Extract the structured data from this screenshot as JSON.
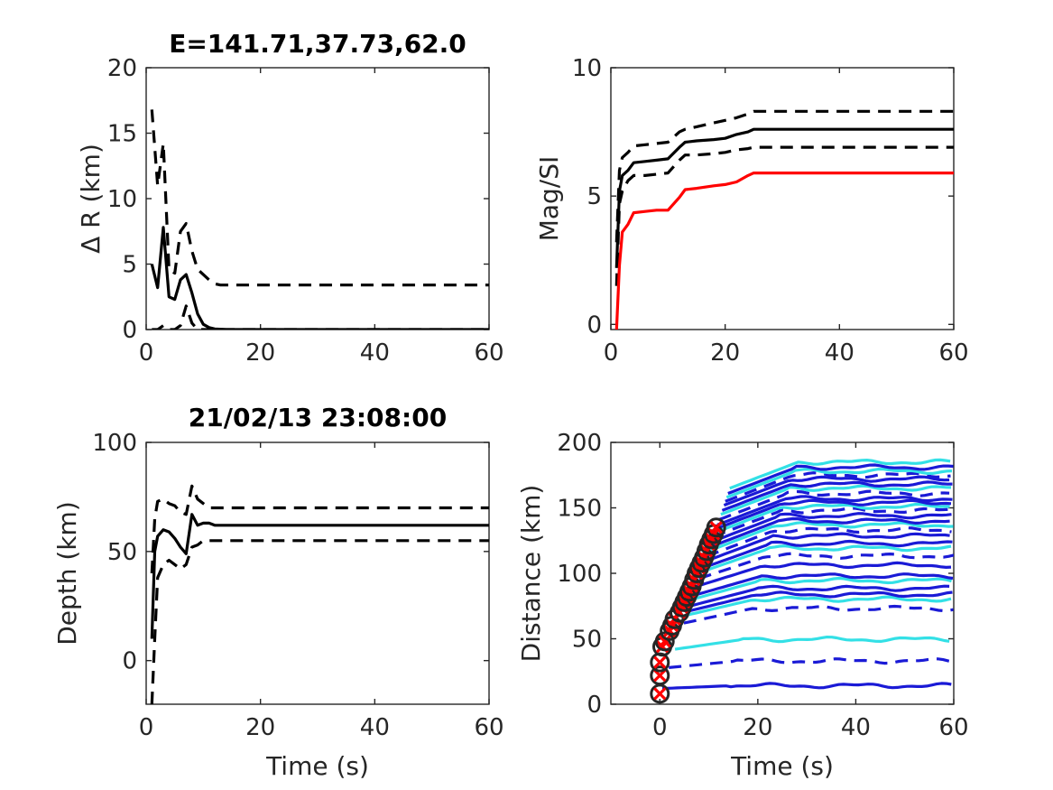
{
  "colors": {
    "black": "#000000",
    "red": "#ff0000",
    "blue": "#1a1ad6",
    "cyan": "#33e0e6",
    "marker_circle": "#262626",
    "marker_x": "#ff0000"
  },
  "chart_data": [
    {
      "id": "dR",
      "type": "line",
      "title": "E=141.71,37.73,62.0",
      "xlabel": "",
      "ylabel": "Δ R (km)",
      "xlim": [
        0,
        60
      ],
      "ylim": [
        0,
        20
      ],
      "xticks": [
        "0",
        "20",
        "40",
        "60"
      ],
      "yticks": [
        "0",
        "5",
        "10",
        "15",
        "20"
      ],
      "series": [
        {
          "style": "solid",
          "color": "black",
          "x": [
            1,
            2,
            3,
            4,
            5,
            6,
            7,
            8,
            9,
            10,
            11,
            12,
            14,
            20,
            30,
            40,
            50,
            60
          ],
          "y": [
            5,
            3.2,
            7.8,
            2.5,
            2.3,
            3.8,
            4.2,
            2.8,
            1.2,
            0.4,
            0.15,
            0.05,
            0,
            0,
            0,
            0,
            0,
            0
          ]
        },
        {
          "style": "dashed",
          "color": "black",
          "x": [
            1,
            2,
            3,
            4,
            5,
            6,
            7,
            8,
            9,
            10,
            11,
            12,
            13,
            20,
            30,
            40,
            50,
            60
          ],
          "y": [
            16.8,
            11,
            14.2,
            4.6,
            4.3,
            7.5,
            8.1,
            6,
            4.6,
            4.2,
            3.8,
            3.5,
            3.4,
            3.4,
            3.4,
            3.4,
            3.4,
            3.4
          ]
        },
        {
          "style": "dashed",
          "color": "black",
          "x": [
            1,
            2,
            3,
            4,
            5,
            6,
            7,
            8,
            9,
            10,
            11,
            12,
            14,
            20,
            30,
            40,
            50,
            60
          ],
          "y": [
            0,
            0,
            0.3,
            0,
            0,
            0.3,
            1.8,
            0.5,
            0,
            0,
            0,
            0,
            0,
            0,
            0,
            0,
            0,
            0
          ]
        }
      ]
    },
    {
      "id": "mag",
      "type": "line",
      "title": "",
      "xlabel": "",
      "ylabel": "Mag/SI",
      "xlim": [
        0,
        60
      ],
      "ylim": [
        -0.2,
        10
      ],
      "xticks": [
        "0",
        "20",
        "40",
        "60"
      ],
      "yticks": [
        "0",
        "5",
        "10"
      ],
      "series": [
        {
          "style": "solid",
          "color": "black",
          "x": [
            1,
            1.5,
            2,
            3,
            4,
            6,
            8,
            10,
            12,
            13,
            15,
            18,
            20,
            22,
            24,
            25,
            30,
            40,
            50,
            60
          ],
          "y": [
            2.2,
            5.2,
            5.8,
            6.0,
            6.3,
            6.35,
            6.4,
            6.45,
            6.9,
            7.1,
            7.15,
            7.2,
            7.25,
            7.4,
            7.5,
            7.6,
            7.6,
            7.6,
            7.6,
            7.6
          ]
        },
        {
          "style": "dashed",
          "color": "black",
          "x": [
            1,
            1.5,
            2,
            3,
            4,
            6,
            8,
            10,
            12,
            13,
            15,
            18,
            20,
            22,
            24,
            25,
            30,
            40,
            50,
            60
          ],
          "y": [
            3.2,
            6.0,
            6.5,
            6.7,
            6.95,
            7.0,
            7.05,
            7.1,
            7.5,
            7.6,
            7.7,
            7.85,
            7.95,
            8.05,
            8.2,
            8.3,
            8.3,
            8.3,
            8.3,
            8.3
          ]
        },
        {
          "style": "dashed",
          "color": "black",
          "x": [
            1,
            1.5,
            2,
            3,
            4,
            6,
            8,
            10,
            12,
            13,
            15,
            18,
            20,
            22,
            24,
            25,
            30,
            40,
            50,
            60
          ],
          "y": [
            1.5,
            4.7,
            5.2,
            5.6,
            5.8,
            5.8,
            5.85,
            5.9,
            6.4,
            6.6,
            6.6,
            6.65,
            6.7,
            6.8,
            6.85,
            6.9,
            6.9,
            6.9,
            6.9,
            6.9
          ]
        },
        {
          "style": "solid",
          "color": "red",
          "x": [
            1,
            1.5,
            2,
            3,
            4,
            6,
            8,
            10,
            12,
            13,
            15,
            18,
            20,
            22,
            24,
            25,
            30,
            40,
            50,
            60
          ],
          "y": [
            -0.2,
            2.3,
            3.6,
            3.9,
            4.35,
            4.4,
            4.45,
            4.45,
            4.95,
            5.25,
            5.3,
            5.4,
            5.45,
            5.55,
            5.8,
            5.9,
            5.9,
            5.9,
            5.9,
            5.9
          ]
        }
      ]
    },
    {
      "id": "depth",
      "type": "line",
      "title": "21/02/13 23:08:00",
      "xlabel": "Time (s)",
      "ylabel": "Depth (km)",
      "xlim": [
        0,
        60
      ],
      "ylim": [
        -20,
        100
      ],
      "xticks": [
        "0",
        "20",
        "40",
        "60"
      ],
      "yticks": [
        "0",
        "50",
        "100"
      ],
      "series": [
        {
          "style": "solid",
          "color": "black",
          "x": [
            1,
            1.5,
            2,
            3,
            4,
            5,
            6,
            7,
            8,
            9,
            10,
            11,
            12,
            14,
            20,
            30,
            40,
            50,
            60
          ],
          "y": [
            10,
            50,
            57,
            60,
            59,
            56,
            52,
            49,
            67,
            62,
            63,
            63,
            62,
            62,
            62,
            62,
            62,
            62,
            62
          ]
        },
        {
          "style": "dashed",
          "color": "black",
          "x": [
            1,
            1.5,
            2,
            3,
            4,
            5,
            6,
            7,
            8,
            9,
            10,
            11,
            12,
            14,
            20,
            30,
            40,
            50,
            60
          ],
          "y": [
            40,
            65,
            73,
            74,
            72,
            71,
            68,
            67,
            80,
            74,
            72,
            70,
            70,
            70,
            70,
            70,
            70,
            70,
            70
          ]
        },
        {
          "style": "dashed",
          "color": "black",
          "x": [
            1,
            1.5,
            2,
            3,
            4,
            5,
            6,
            7,
            8,
            9,
            10,
            11,
            12,
            14,
            20,
            30,
            40,
            50,
            60
          ],
          "y": [
            -20,
            10,
            38,
            44,
            46,
            44,
            42,
            44,
            52,
            53,
            55,
            55,
            55,
            55,
            55,
            55,
            55,
            55,
            55
          ]
        }
      ]
    },
    {
      "id": "dist",
      "type": "line",
      "title": "",
      "xlabel": "Time (s)",
      "ylabel": "Distance (km)",
      "xlim": [
        -10,
        60
      ],
      "ylim": [
        0,
        200
      ],
      "xticks": [
        "0",
        "20",
        "40",
        "60"
      ],
      "yticks": [
        "0",
        "50",
        "100",
        "150",
        "200"
      ],
      "stations": [
        {
          "d": 12,
          "c": "blue",
          "s": "solid"
        },
        {
          "d": 28,
          "c": "blue",
          "s": "dashed"
        },
        {
          "d": 42,
          "c": "cyan",
          "s": "solid"
        },
        {
          "d": 62,
          "c": "blue",
          "s": "dashed"
        },
        {
          "d": 68,
          "c": "cyan",
          "s": "solid"
        },
        {
          "d": 71,
          "c": "blue",
          "s": "solid"
        },
        {
          "d": 75,
          "c": "blue",
          "s": "solid"
        },
        {
          "d": 80,
          "c": "cyan",
          "s": "solid"
        },
        {
          "d": 83,
          "c": "blue",
          "s": "solid"
        },
        {
          "d": 90,
          "c": "blue",
          "s": "solid"
        },
        {
          "d": 96,
          "c": "blue",
          "s": "dashed"
        },
        {
          "d": 101,
          "c": "cyan",
          "s": "solid"
        },
        {
          "d": 104,
          "c": "blue",
          "s": "solid"
        },
        {
          "d": 109,
          "c": "blue",
          "s": "solid"
        },
        {
          "d": 113,
          "c": "blue",
          "s": "dashed"
        },
        {
          "d": 117,
          "c": "cyan",
          "s": "solid"
        },
        {
          "d": 120,
          "c": "blue",
          "s": "solid"
        },
        {
          "d": 124,
          "c": "blue",
          "s": "solid"
        },
        {
          "d": 128,
          "c": "blue",
          "s": "dashed"
        },
        {
          "d": 131,
          "c": "cyan",
          "s": "solid"
        },
        {
          "d": 134,
          "c": "blue",
          "s": "solid"
        },
        {
          "d": 137,
          "c": "blue",
          "s": "solid"
        },
        {
          "d": 141,
          "c": "blue",
          "s": "dashed"
        },
        {
          "d": 145,
          "c": "cyan",
          "s": "solid"
        },
        {
          "d": 148,
          "c": "blue",
          "s": "solid"
        },
        {
          "d": 152,
          "c": "blue",
          "s": "solid"
        },
        {
          "d": 155,
          "c": "blue",
          "s": "dashed"
        },
        {
          "d": 158,
          "c": "cyan",
          "s": "solid"
        },
        {
          "d": 161,
          "c": "blue",
          "s": "solid"
        },
        {
          "d": 165,
          "c": "cyan",
          "s": "solid"
        }
      ],
      "markers": {
        "x": [
          0,
          0,
          0,
          0.5,
          1,
          2,
          2.5,
          3,
          4,
          4.5,
          5,
          5.5,
          6,
          6.5,
          7,
          7.5,
          8,
          8.5,
          9,
          9.5,
          10,
          10.5,
          11,
          11.5
        ],
        "y": [
          8,
          22,
          32,
          44,
          48,
          56,
          60,
          65,
          70,
          74,
          78,
          82,
          86,
          90,
          95,
          100,
          104,
          108,
          112,
          117,
          122,
          126,
          130,
          135
        ]
      }
    }
  ]
}
